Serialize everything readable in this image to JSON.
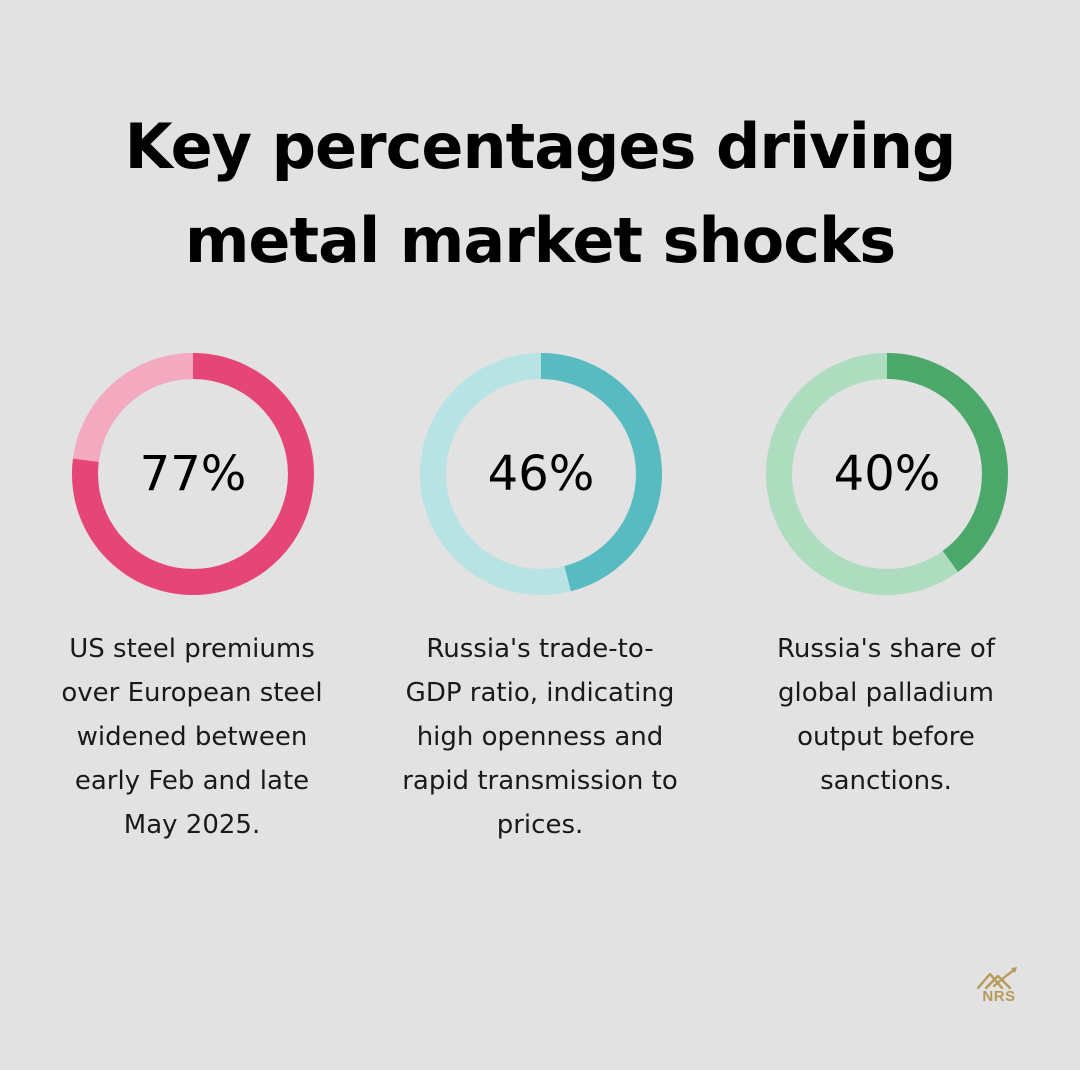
{
  "title": {
    "line1": "Key percentages driving",
    "line2": "metal market shocks"
  },
  "chart_data": {
    "type": "donut",
    "items": [
      {
        "value": 77,
        "label": "77%",
        "description": [
          "US steel premiums",
          "over European steel",
          "widened between",
          "early Feb and late",
          "May 2025."
        ],
        "color": "#e54577",
        "track_color": "#f3a9c0"
      },
      {
        "value": 46,
        "label": "46%",
        "description": [
          "Russia's trade-to-",
          "GDP ratio, indicating",
          "high openness and",
          "rapid transmission to",
          "prices."
        ],
        "color": "#57bbc1",
        "track_color": "#b8e3e5"
      },
      {
        "value": 40,
        "label": "40%",
        "description": [
          "Russia's share of",
          "global palladium",
          "output before",
          "sanctions."
        ],
        "color": "#4ca86a",
        "track_color": "#aedcbe"
      }
    ]
  },
  "logo": {
    "text": "NRS",
    "icon": "house-chart-icon",
    "color": "#b89a5b"
  }
}
